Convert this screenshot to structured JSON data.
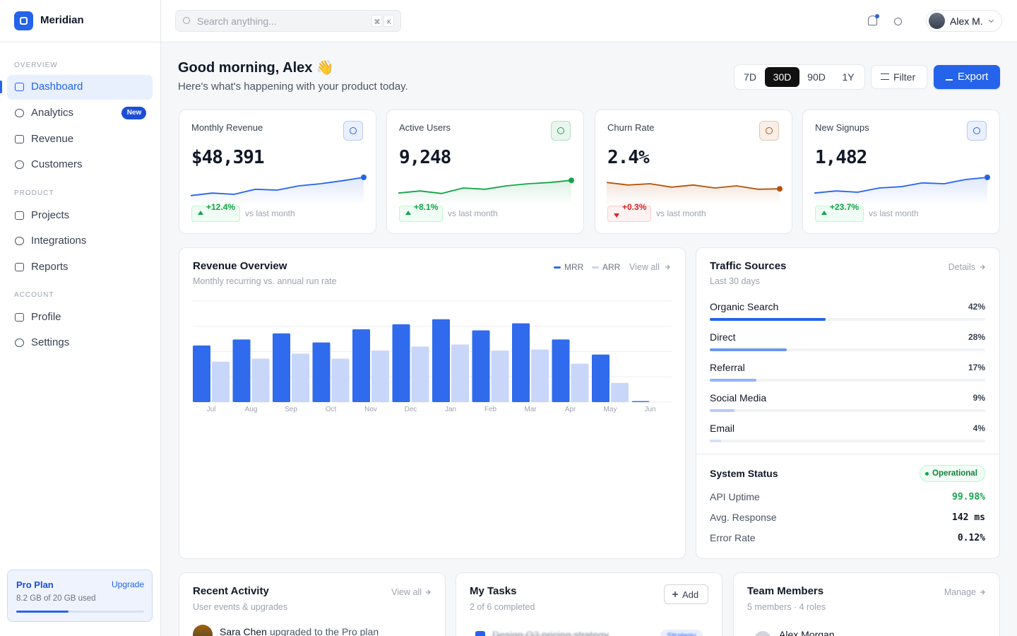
{
  "sidebar": {
    "brand": "Meridian",
    "sections": [
      {
        "title": "OVERVIEW",
        "items": [
          {
            "label": "Dashboard",
            "active": true
          },
          {
            "label": "Analytics",
            "badge": "New"
          },
          {
            "label": "Revenue"
          },
          {
            "label": "Customers"
          }
        ]
      },
      {
        "title": "PRODUCT",
        "items": [
          {
            "label": "Projects"
          },
          {
            "label": "Integrations"
          },
          {
            "label": "Reports"
          }
        ]
      },
      {
        "title": "ACCOUNT",
        "items": [
          {
            "label": "Profile"
          },
          {
            "label": "Settings"
          }
        ]
      }
    ],
    "plan": {
      "name": "Pro Plan",
      "action": "Upgrade",
      "usage": "8.2 GB of 20 GB used",
      "used_pct": 41
    }
  },
  "topbar": {
    "search_placeholder": "Search anything...",
    "shortcut": [
      "⌘",
      "K"
    ],
    "user": "Alex M."
  },
  "header": {
    "greeting": "Good morning, Alex 👋",
    "subtitle": "Here's what's happening with your product today.",
    "ranges": [
      "7D",
      "30D",
      "90D",
      "1Y"
    ],
    "active_range": 1,
    "filter": "Filter",
    "export": "Export"
  },
  "kpis": [
    {
      "label": "Monthly Revenue",
      "value": "$48,391",
      "change": "+12.4%",
      "trend": "up",
      "compare": "vs last month",
      "color": "#2563eb",
      "spark": [
        22,
        28,
        25,
        37,
        35,
        45,
        50,
        57,
        65
      ],
      "ylim": [
        0,
        100
      ]
    },
    {
      "label": "Active Users",
      "value": "9,248",
      "change": "+8.1%",
      "trend": "up",
      "compare": "vs last month",
      "color": "#16a34a",
      "spark": [
        28,
        33,
        27,
        40,
        37,
        45,
        50,
        53,
        58
      ],
      "ylim": [
        0,
        100
      ]
    },
    {
      "label": "Churn Rate",
      "value": "2.4%",
      "change": "+0.3%",
      "trend": "down",
      "compare": "vs last month",
      "color": "#b45309",
      "spark": [
        53,
        47,
        50,
        42,
        47,
        40,
        45,
        37,
        38
      ],
      "ylim": [
        0,
        100
      ]
    },
    {
      "label": "New Signups",
      "value": "1,482",
      "change": "+23.7%",
      "trend": "up",
      "compare": "vs last month",
      "color": "#2563eb",
      "spark": [
        28,
        33,
        30,
        40,
        43,
        52,
        50,
        60,
        65
      ],
      "ylim": [
        0,
        100
      ]
    }
  ],
  "revenue_overview": {
    "title": "Revenue Overview",
    "subtitle": "Monthly recurring vs. annual run rate",
    "action": "View all",
    "categories": [
      "Jul",
      "Aug",
      "Sep",
      "Oct",
      "Nov",
      "Dec",
      "Jan",
      "Feb",
      "Mar",
      "Apr",
      "May",
      "Jun"
    ],
    "series": [
      {
        "name": "MRR",
        "color": "#2f6bec",
        "values": [
          56,
          62,
          68,
          59,
          72,
          77,
          82,
          71,
          78,
          62,
          47,
          1
        ]
      },
      {
        "name": "ARR",
        "color": "#c8d6fa",
        "values": [
          40,
          43,
          48,
          43,
          51,
          55,
          57,
          51,
          52,
          38,
          19,
          0
        ]
      }
    ],
    "ylim": [
      0,
      100
    ],
    "gridlines": [
      0,
      25,
      50,
      75,
      100
    ]
  },
  "traffic": {
    "title": "Traffic Sources",
    "subtitle": "Last 30 days",
    "action": "Details",
    "xlim": [
      0,
      100
    ],
    "sources": [
      {
        "name": "Organic Search",
        "value": 42,
        "value_label": "42%",
        "color": "#2563eb"
      },
      {
        "name": "Direct",
        "value": 28,
        "value_label": "28%",
        "color": "#6b96f1"
      },
      {
        "name": "Referral",
        "value": 17,
        "value_label": "17%",
        "color": "#93b2f5"
      },
      {
        "name": "Social Media",
        "value": 9,
        "value_label": "9%",
        "color": "#b7cbf8"
      },
      {
        "name": "Email",
        "value": 4,
        "value_label": "4%",
        "color": "#d3e0fb"
      }
    ]
  },
  "system": {
    "title": "System Status",
    "status": "Operational",
    "metrics": [
      {
        "label": "API Uptime",
        "value": "99.98%",
        "color": "#16a34a"
      },
      {
        "label": "Avg. Response",
        "value": "142 ms",
        "color": "#111827"
      },
      {
        "label": "Error Rate",
        "value": "0.12%",
        "color": "#111827"
      }
    ]
  },
  "activity": {
    "title": "Recent Activity",
    "subtitle": "User events & upgrades",
    "action": "View all",
    "items": [
      {
        "name": "Sara Chen",
        "text": "upgraded to the Pro plan"
      }
    ]
  },
  "tasks": {
    "title": "My Tasks",
    "subtitle": "2 of 6 completed",
    "action": "Add",
    "items": [
      {
        "text": "Design Q3 pricing strategy",
        "tag": "Strategy",
        "done": true
      }
    ]
  },
  "team": {
    "title": "Team Members",
    "subtitle": "5 members · 4 roles",
    "action": "Manage",
    "members": [
      {
        "name": "Alex Morgan"
      }
    ]
  }
}
